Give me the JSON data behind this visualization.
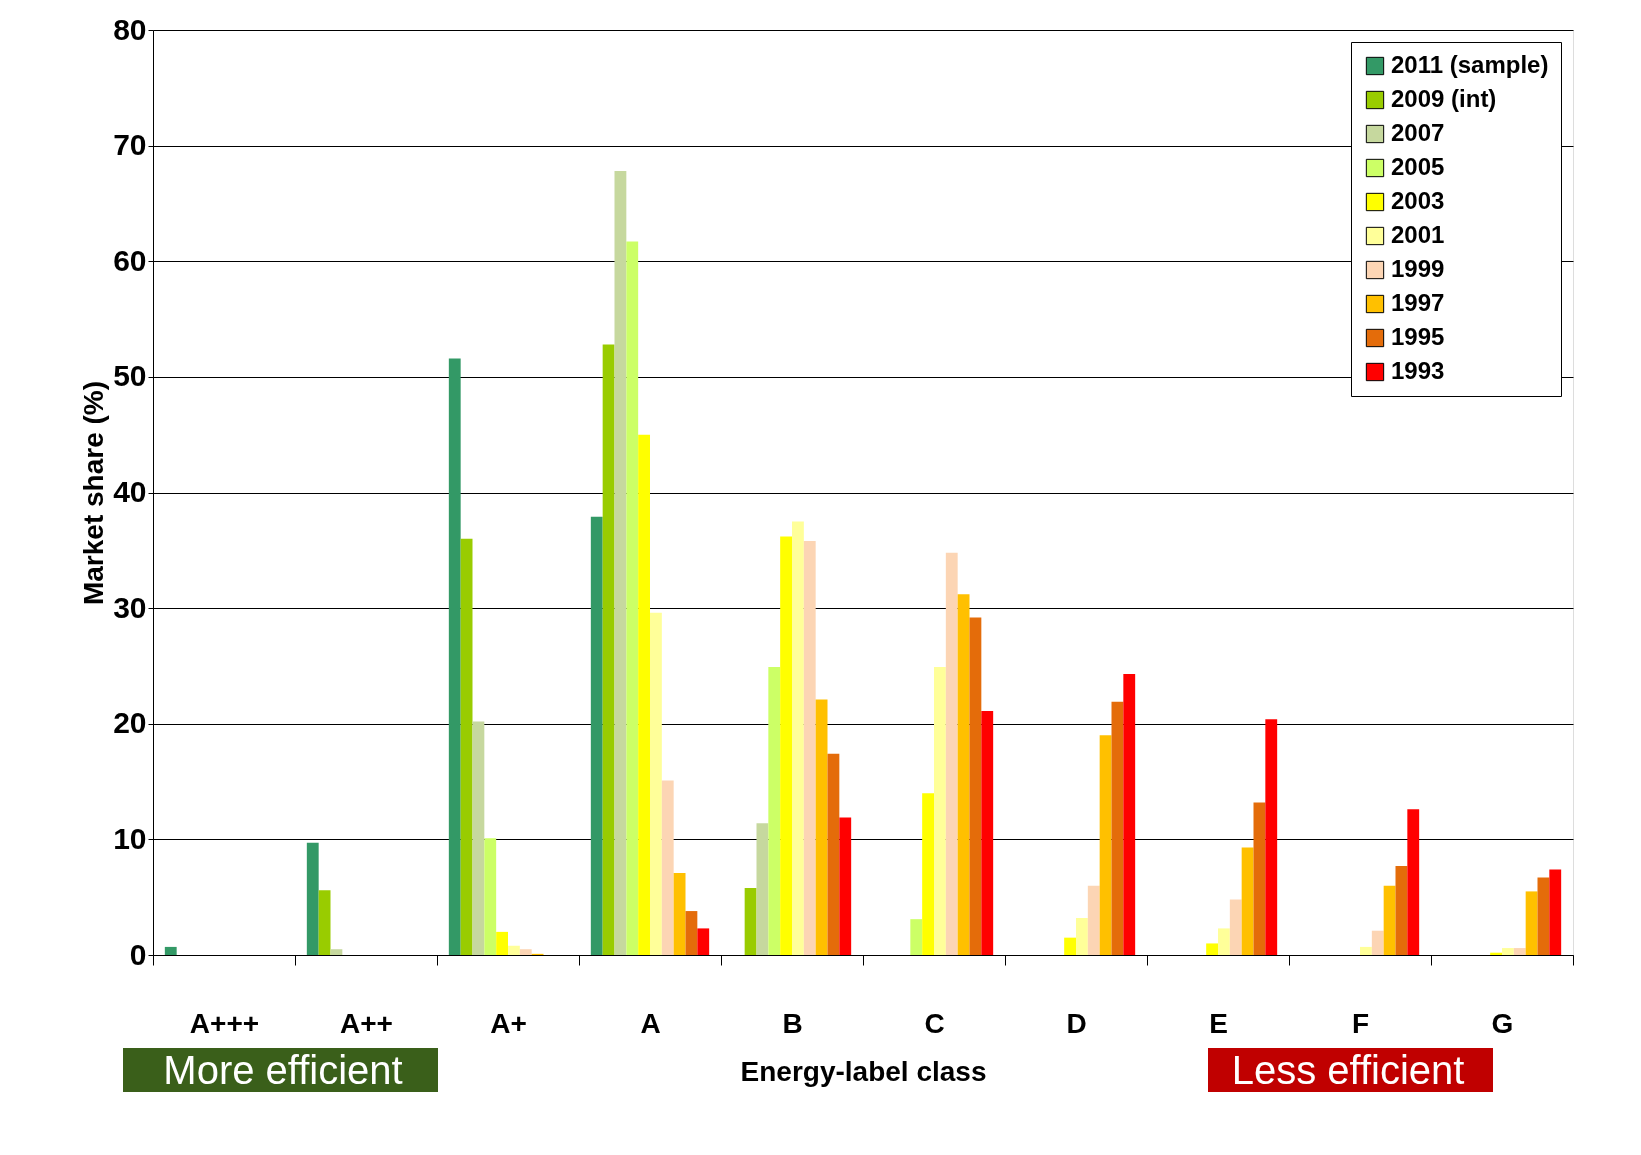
{
  "chart_data": {
    "type": "bar",
    "xlabel": "Energy-label class",
    "ylabel": "Market share (%)",
    "categories": [
      "A+++",
      "A++",
      "A+",
      "A",
      "B",
      "C",
      "D",
      "E",
      "F",
      "G"
    ],
    "series": [
      {
        "name": "2011 (sample)",
        "color": "#339966",
        "values": [
          0.7,
          9.7,
          51.6,
          37.9,
          0,
          0,
          0,
          0,
          0,
          0
        ]
      },
      {
        "name": "2009 (int)",
        "color": "#99cc00",
        "values": [
          0,
          5.6,
          36,
          52.8,
          5.8,
          0,
          0,
          0,
          0,
          0
        ]
      },
      {
        "name": "2007",
        "color": "#c6d89e",
        "values": [
          0,
          0.5,
          20.2,
          67.8,
          11.4,
          0,
          0,
          0,
          0,
          0
        ]
      },
      {
        "name": "2005",
        "color": "#ccff66",
        "values": [
          0,
          0,
          10.1,
          61.7,
          24.9,
          3.1,
          0,
          0,
          0,
          0
        ]
      },
      {
        "name": "2003",
        "color": "#ffff00",
        "values": [
          0,
          0,
          2.0,
          45.0,
          36.2,
          14.0,
          1.5,
          1.0,
          0,
          0.2
        ]
      },
      {
        "name": "2001",
        "color": "#ffff99",
        "values": [
          0,
          0,
          0.8,
          29.6,
          37.5,
          24.9,
          3.2,
          2.3,
          0.7,
          0.6
        ]
      },
      {
        "name": "1999",
        "color": "#fcd5b4",
        "values": [
          0,
          0,
          0.5,
          15.1,
          35.8,
          34.8,
          6.0,
          4.8,
          2.1,
          0.6
        ]
      },
      {
        "name": "1997",
        "color": "#ffc000",
        "values": [
          0,
          0,
          0.1,
          7.1,
          22.1,
          31.2,
          19.0,
          9.3,
          6.0,
          5.5
        ]
      },
      {
        "name": "1995",
        "color": "#e46c0a",
        "values": [
          0,
          0,
          0,
          3.8,
          17.4,
          29.2,
          21.9,
          13.2,
          7.7,
          6.7
        ]
      },
      {
        "name": "1993",
        "color": "#ff0000",
        "values": [
          0,
          0,
          0,
          2.3,
          11.9,
          21.1,
          24.3,
          20.4,
          12.6,
          7.4
        ]
      }
    ],
    "ylim": [
      0,
      80
    ],
    "yticks": [
      0,
      10,
      20,
      30,
      40,
      50,
      60,
      70,
      80
    ],
    "grid": "y",
    "legend": "top right",
    "annotations": [
      "More efficient",
      "Less efficient"
    ]
  }
}
